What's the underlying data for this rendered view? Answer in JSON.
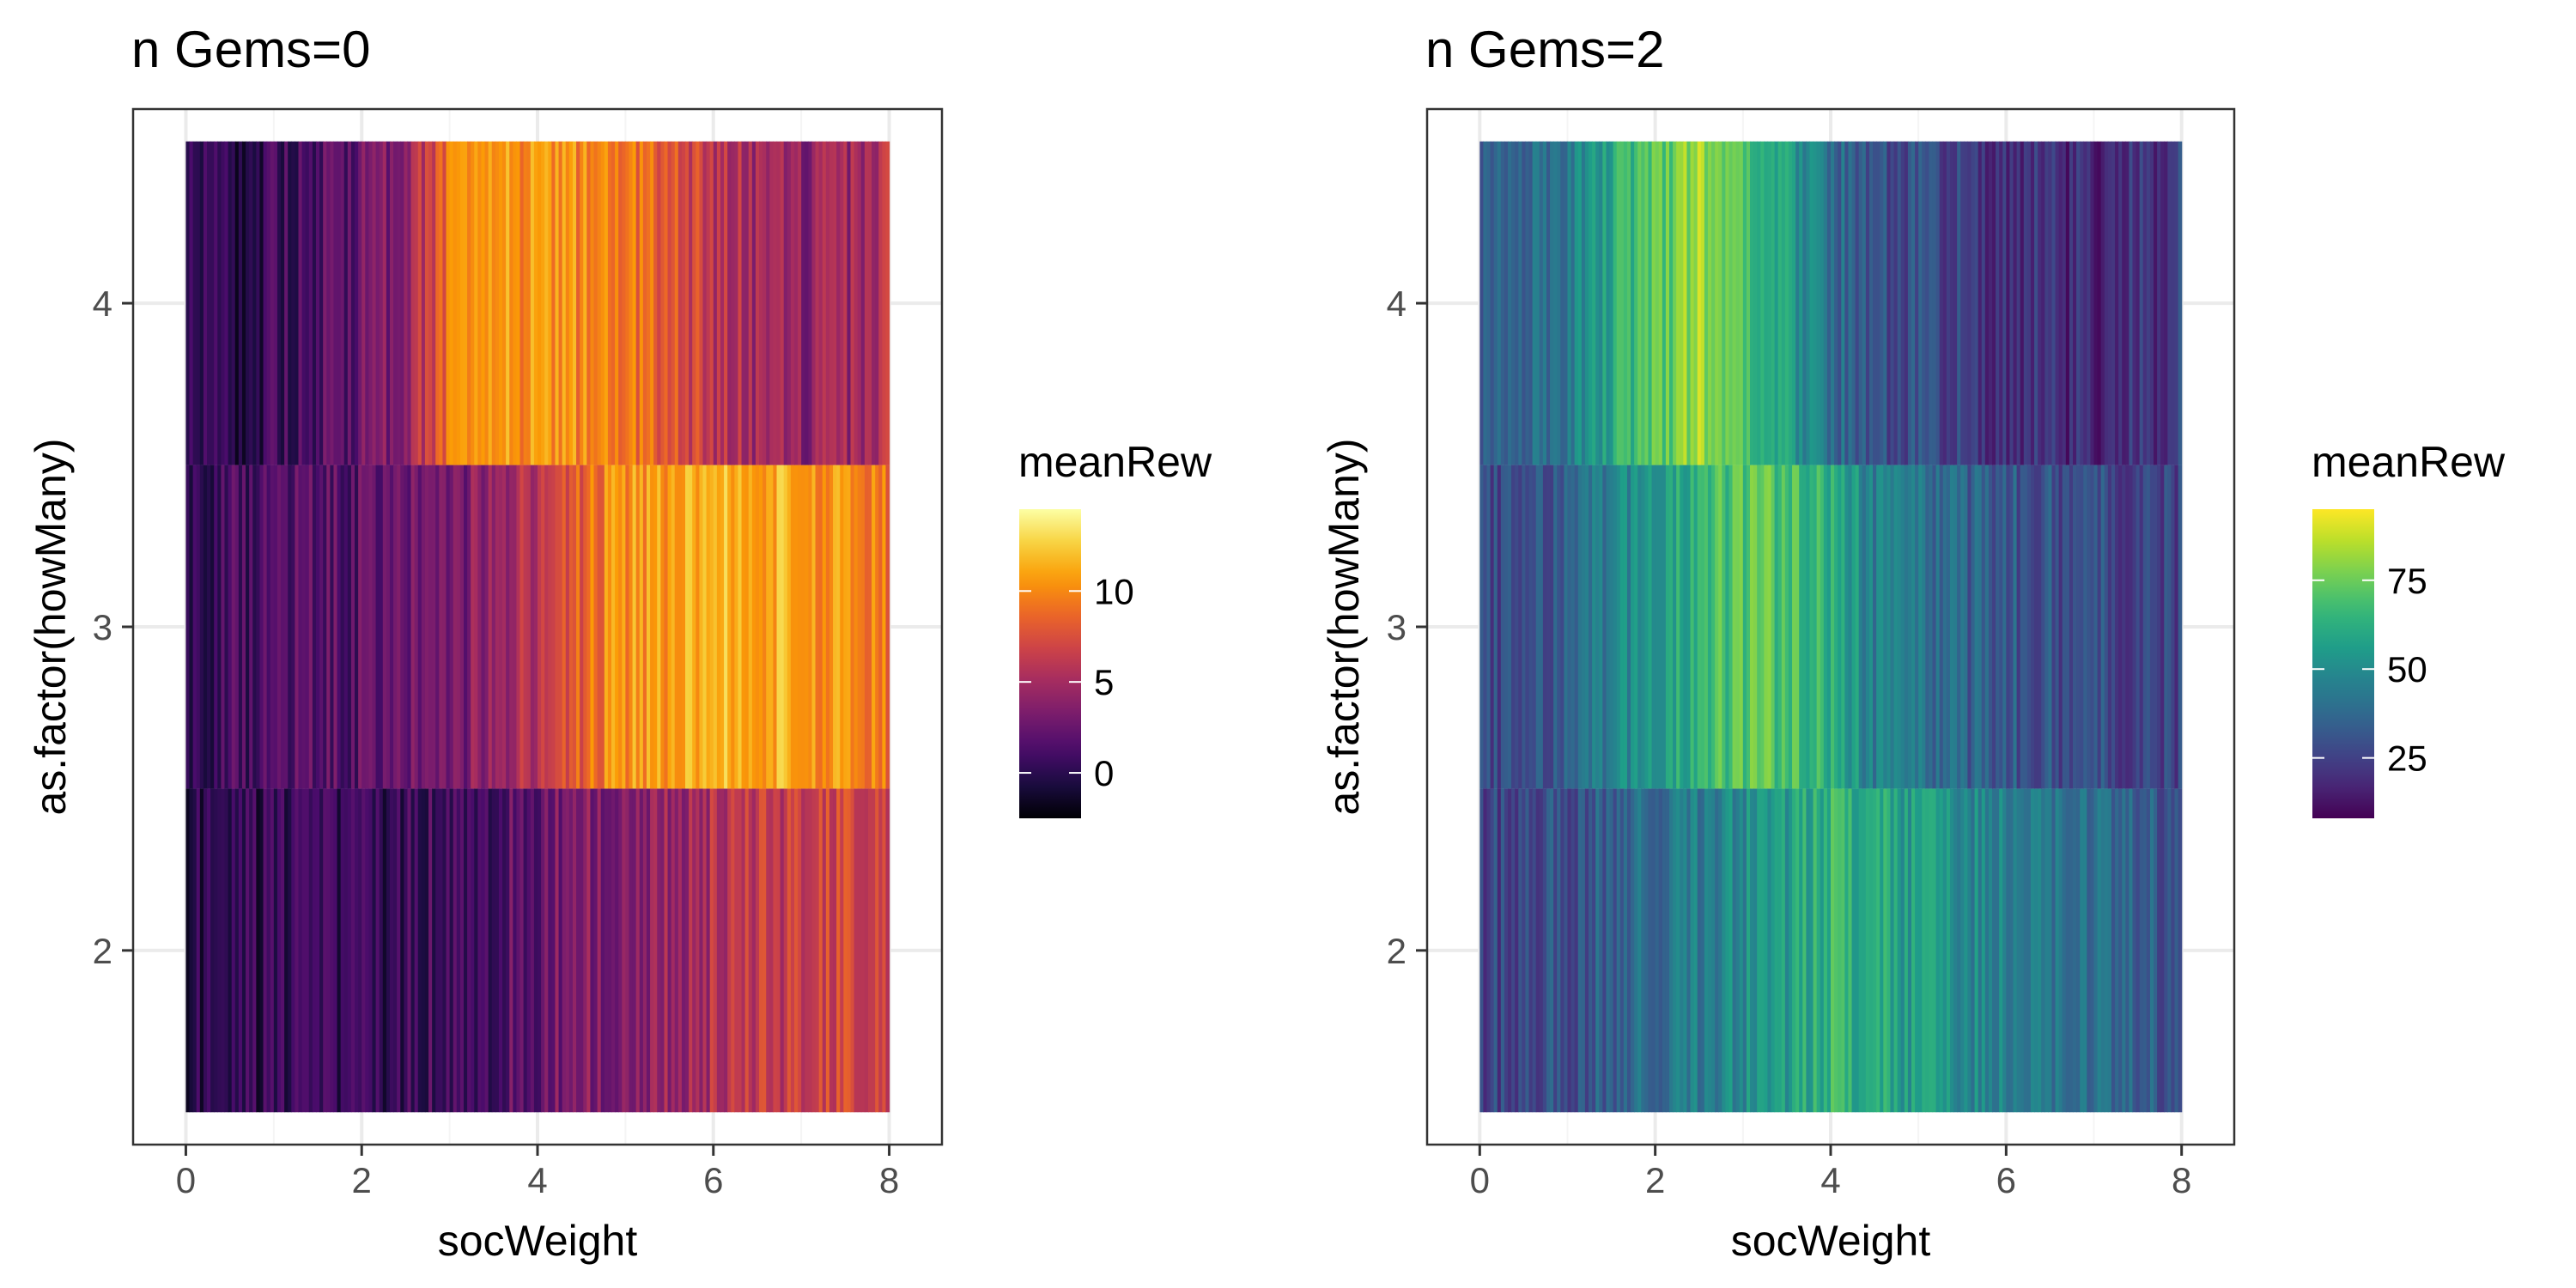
{
  "chart_data": [
    {
      "type": "heatmap",
      "title": "n Gems=0",
      "xlabel": "socWeight",
      "ylabel": "as.factor(howMany)",
      "x_range": [
        0,
        8
      ],
      "x_ticks": [
        "0",
        "2",
        "4",
        "6",
        "8"
      ],
      "y_categories": [
        "2",
        "3",
        "4"
      ],
      "grid": true,
      "colormap": "inferno",
      "legend": {
        "title": "meanRew",
        "position": "right",
        "min": -2.5,
        "max": 14.5,
        "ticks": [
          0,
          5,
          10
        ],
        "tick_labels": [
          "0",
          "5",
          "10"
        ]
      },
      "rows": [
        {
          "category": "4",
          "x": [
            0,
            0.5,
            1,
            1.5,
            2,
            2.5,
            3,
            3.5,
            4,
            4.5,
            5,
            5.5,
            6,
            6.5,
            7,
            7.5,
            8
          ],
          "meanRew": [
            -0.5,
            0.0,
            0.5,
            1.5,
            2.5,
            4.0,
            9.5,
            10.5,
            10.5,
            10.0,
            9.5,
            8.0,
            6.0,
            5.0,
            4.0,
            4.5,
            5.5
          ]
        },
        {
          "category": "3",
          "x": [
            0,
            0.5,
            1,
            1.5,
            2,
            2.5,
            3,
            3.5,
            4,
            4.5,
            5,
            5.5,
            6,
            6.5,
            7,
            7.5,
            8
          ],
          "meanRew": [
            0.5,
            1.0,
            1.5,
            1.5,
            2.0,
            2.5,
            3.0,
            4.0,
            6.0,
            8.5,
            10.5,
            11.0,
            11.5,
            11.5,
            11.0,
            10.0,
            9.5
          ]
        },
        {
          "category": "2",
          "x": [
            0,
            0.5,
            1,
            1.5,
            2,
            2.5,
            3,
            3.5,
            4,
            4.5,
            5,
            5.5,
            6,
            6.5,
            7,
            7.5,
            8
          ],
          "meanRew": [
            0.0,
            0.0,
            0.0,
            0.5,
            0.5,
            0.5,
            1.0,
            1.5,
            2.5,
            3.5,
            4.0,
            4.5,
            5.5,
            6.0,
            6.5,
            7.0,
            7.0
          ]
        }
      ]
    },
    {
      "type": "heatmap",
      "title": "n Gems=2",
      "xlabel": "socWeight",
      "ylabel": "as.factor(howMany)",
      "x_range": [
        0,
        8
      ],
      "x_ticks": [
        "0",
        "2",
        "4",
        "6",
        "8"
      ],
      "y_categories": [
        "2",
        "3",
        "4"
      ],
      "grid": true,
      "colormap": "viridis",
      "legend": {
        "title": "meanRew",
        "position": "right",
        "min": 8,
        "max": 95,
        "ticks": [
          25,
          50,
          75
        ],
        "tick_labels": [
          "25",
          "50",
          "75"
        ]
      },
      "rows": [
        {
          "category": "4",
          "x": [
            0,
            0.5,
            1,
            1.5,
            2,
            2.5,
            3,
            3.5,
            4,
            4.5,
            5,
            5.5,
            6,
            6.5,
            7,
            7.5,
            8
          ],
          "meanRew": [
            30,
            35,
            45,
            60,
            72,
            82,
            70,
            55,
            40,
            30,
            28,
            25,
            22,
            20,
            18,
            20,
            25
          ]
        },
        {
          "category": "3",
          "x": [
            0,
            0.5,
            1,
            1.5,
            2,
            2.5,
            3,
            3.5,
            4,
            4.5,
            5,
            5.5,
            6,
            6.5,
            7,
            7.5,
            8
          ],
          "meanRew": [
            25,
            28,
            35,
            45,
            55,
            65,
            72,
            70,
            62,
            45,
            40,
            35,
            33,
            30,
            28,
            27,
            26
          ]
        },
        {
          "category": "2",
          "x": [
            0,
            0.5,
            1,
            1.5,
            2,
            2.5,
            3,
            3.5,
            4,
            4.5,
            5,
            5.5,
            6,
            6.5,
            7,
            7.5,
            8
          ],
          "meanRew": [
            25,
            27,
            30,
            35,
            40,
            45,
            50,
            55,
            65,
            60,
            55,
            50,
            45,
            42,
            40,
            36,
            30
          ]
        }
      ]
    }
  ]
}
